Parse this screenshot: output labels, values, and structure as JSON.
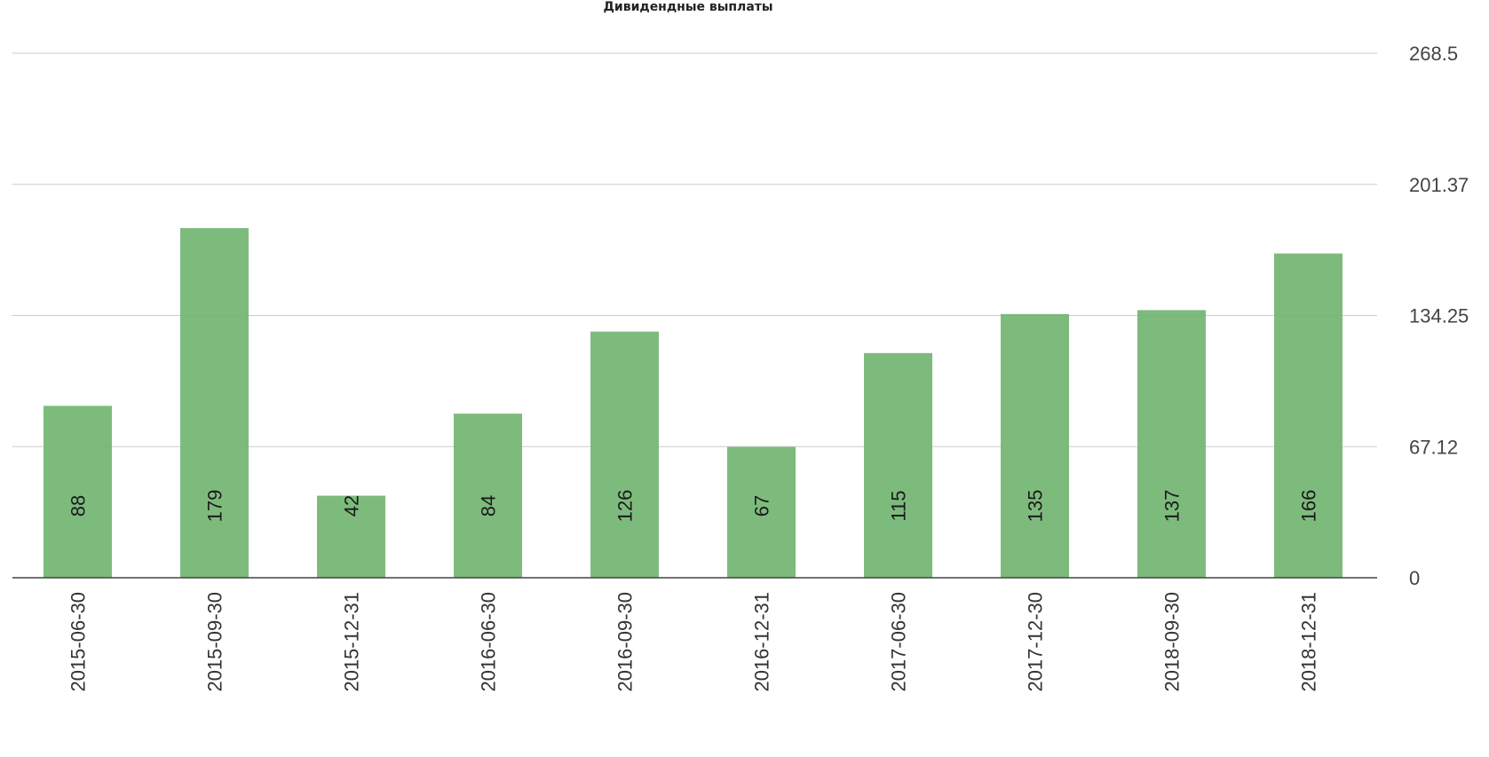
{
  "chart_data": {
    "type": "bar",
    "title": "Дивидендные выплаты",
    "categories": [
      "2015-06-30",
      "2015-09-30",
      "2015-12-31",
      "2016-06-30",
      "2016-09-30",
      "2016-12-31",
      "2017-06-30",
      "2017-12-30",
      "2018-09-30",
      "2018-12-31"
    ],
    "series": [
      {
        "values": [
          88,
          179,
          42,
          84,
          126,
          67,
          115,
          135,
          137,
          166
        ]
      }
    ],
    "data_labels": [
      "88",
      "179",
      "42",
      "84",
      "126",
      "67",
      "115",
      "135",
      "137",
      "166"
    ],
    "y_ticks": [
      0,
      67.12,
      134.25,
      201.37,
      268.5
    ],
    "y_tick_labels": [
      "0",
      "67.12",
      "134.25",
      "201.37",
      "268.5"
    ],
    "ylim": [
      0,
      268.5
    ],
    "y_axis_side": "right",
    "grid": true,
    "legend": "none",
    "bar_color": "#6fb46f",
    "xlabel": "",
    "ylabel": ""
  }
}
